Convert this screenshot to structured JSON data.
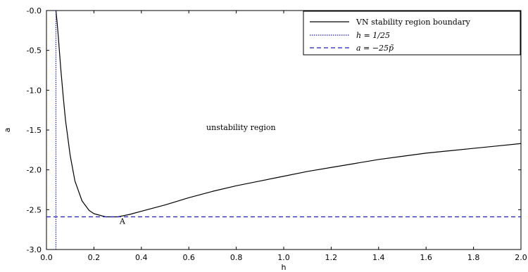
{
  "chart_data": {
    "type": "line",
    "xlabel": "h",
    "ylabel": "a",
    "xlim": [
      0.0,
      2.0
    ],
    "ylim": [
      -3.0,
      0.0
    ],
    "x_ticks": [
      "0.0",
      "0.2",
      "0.4",
      "0.6",
      "0.8",
      "1.0",
      "1.2",
      "1.4",
      "1.6",
      "1.8",
      "2.0"
    ],
    "y_ticks": [
      "-0.0",
      "-0.5",
      "-1.0",
      "-1.5",
      "-2.0",
      "-2.5",
      "-3.0"
    ],
    "grid": false,
    "legend_position": "top-right",
    "series": [
      {
        "name": "VN stability region boundary",
        "style": "solid",
        "color": "#000000",
        "x": [
          0.04,
          0.045,
          0.05,
          0.06,
          0.07,
          0.08,
          0.1,
          0.12,
          0.15,
          0.18,
          0.2,
          0.25,
          0.3,
          0.35,
          0.4,
          0.5,
          0.6,
          0.7,
          0.8,
          0.9,
          1.0,
          1.1,
          1.2,
          1.3,
          1.4,
          1.5,
          1.6,
          1.7,
          1.8,
          1.9,
          2.0
        ],
        "y": [
          0.0,
          -0.15,
          -0.33,
          -0.72,
          -1.06,
          -1.37,
          -1.82,
          -2.14,
          -2.39,
          -2.51,
          -2.55,
          -2.59,
          -2.59,
          -2.56,
          -2.52,
          -2.44,
          -2.35,
          -2.27,
          -2.2,
          -2.14,
          -2.08,
          -2.02,
          -1.97,
          -1.92,
          -1.87,
          -1.83,
          -1.79,
          -1.76,
          -1.73,
          -1.7,
          -1.67
        ]
      },
      {
        "name": "h = 1/25",
        "style": "dotted",
        "color": "#1f1fbf",
        "x": [
          0.04,
          0.04
        ],
        "y": [
          -3.0,
          0.0
        ]
      },
      {
        "name": "a = −25p̃",
        "style": "dashed",
        "color": "#1f1fbf",
        "x": [
          0.0,
          2.0
        ],
        "y": [
          -2.59,
          -2.59
        ]
      }
    ],
    "annotations": [
      {
        "text": "unstability region",
        "x": 0.82,
        "y": -1.5
      },
      {
        "text": "A",
        "x": 0.32,
        "y": -2.68
      }
    ]
  }
}
